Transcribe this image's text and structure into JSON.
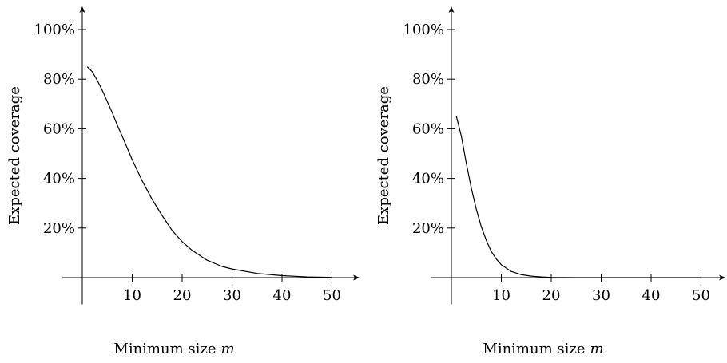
{
  "chart_data": [
    {
      "type": "line",
      "xlabel": "Minimum size",
      "xlabel_var": "m",
      "ylabel": "Expected coverage",
      "xlim": [
        -4,
        56
      ],
      "ylim": [
        -0.05,
        1.1
      ],
      "xticks": [
        10,
        20,
        30,
        40,
        50
      ],
      "xtick_labels": [
        "10",
        "20",
        "30",
        "40",
        "50"
      ],
      "yticks": [
        0.2,
        0.4,
        0.6,
        0.8,
        1.0
      ],
      "ytick_labels": [
        "20%",
        "40%",
        "60%",
        "80%",
        "100%"
      ],
      "grid": false,
      "series": [
        {
          "color": "#000000",
          "x": [
            1,
            2,
            3,
            4,
            5,
            6,
            7,
            8,
            10,
            12,
            14,
            16,
            18,
            20,
            22,
            25,
            28,
            30,
            35,
            40,
            45,
            50
          ],
          "y": [
            0.85,
            0.83,
            0.795,
            0.755,
            0.71,
            0.665,
            0.615,
            0.57,
            0.475,
            0.39,
            0.315,
            0.25,
            0.19,
            0.145,
            0.11,
            0.07,
            0.045,
            0.035,
            0.017,
            0.008,
            0.003,
            0.001
          ]
        }
      ]
    },
    {
      "type": "line",
      "xlabel": "Minimum size",
      "xlabel_var": "m",
      "ylabel": "Expected coverage",
      "xlim": [
        -4,
        56
      ],
      "ylim": [
        -0.05,
        1.1
      ],
      "xticks": [
        10,
        20,
        30,
        40,
        50
      ],
      "xtick_labels": [
        "10",
        "20",
        "30",
        "40",
        "50"
      ],
      "yticks": [
        0.2,
        0.4,
        0.6,
        0.8,
        1.0
      ],
      "ytick_labels": [
        "20%",
        "40%",
        "60%",
        "80%",
        "100%"
      ],
      "grid": false,
      "series": [
        {
          "color": "#000000",
          "x": [
            1,
            2,
            3,
            4,
            5,
            6,
            7,
            8,
            9,
            10,
            12,
            14,
            16,
            18,
            20,
            25,
            30,
            40,
            50
          ],
          "y": [
            0.65,
            0.57,
            0.46,
            0.36,
            0.275,
            0.205,
            0.15,
            0.105,
            0.075,
            0.052,
            0.025,
            0.012,
            0.006,
            0.003,
            0.001,
            0.0,
            0.0,
            0.0,
            0.0
          ]
        }
      ]
    }
  ]
}
